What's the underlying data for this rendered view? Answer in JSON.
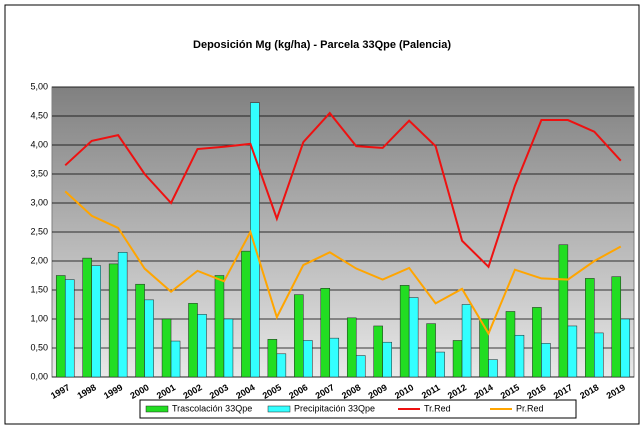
{
  "chart_data": {
    "type": "bar",
    "title": "Deposición Mg (kg/ha) - Parcela 33Qpe (Palencia)",
    "categories": [
      "1997",
      "1998",
      "1999",
      "2000",
      "2001",
      "2002",
      "2003",
      "2004",
      "2005",
      "2006",
      "2007",
      "2008",
      "2009",
      "2010",
      "2011",
      "2012",
      "2014",
      "2015",
      "2016",
      "2017",
      "2018",
      "2019"
    ],
    "series": [
      {
        "name": "Trascolación  33Qpe",
        "type": "bar",
        "color": "#22dd22",
        "values": [
          1.75,
          2.05,
          1.95,
          1.6,
          1.0,
          1.27,
          1.75,
          2.17,
          0.65,
          1.42,
          1.53,
          1.02,
          0.88,
          1.58,
          0.92,
          0.63,
          1.0,
          1.13,
          1.2,
          2.28,
          1.7,
          1.73
        ]
      },
      {
        "name": "Precipitación 33Qpe",
        "type": "bar",
        "color": "#33ffff",
        "values": [
          1.68,
          1.92,
          2.15,
          1.33,
          0.62,
          1.08,
          1.0,
          4.73,
          0.4,
          0.63,
          0.67,
          0.37,
          0.6,
          1.37,
          0.43,
          1.25,
          0.3,
          0.72,
          0.58,
          0.88,
          0.76,
          1.0
        ]
      },
      {
        "name": "Tr.Red",
        "type": "line",
        "color": "#ee1111",
        "values": [
          3.65,
          4.07,
          4.17,
          3.5,
          3.0,
          3.93,
          3.97,
          4.02,
          2.73,
          4.05,
          4.55,
          3.98,
          3.95,
          4.42,
          3.98,
          2.35,
          1.9,
          3.3,
          4.43,
          4.43,
          4.23,
          3.73
        ]
      },
      {
        "name": "Pr.Red",
        "type": "line",
        "color": "#ffa500",
        "values": [
          3.2,
          2.78,
          2.57,
          1.87,
          1.47,
          1.83,
          1.65,
          2.5,
          1.03,
          1.93,
          2.15,
          1.87,
          1.68,
          1.88,
          1.27,
          1.52,
          0.75,
          1.85,
          1.7,
          1.68,
          2.0,
          2.25
        ]
      }
    ],
    "ylim": [
      0,
      5
    ],
    "yticks": [
      {
        "value": 0,
        "label": "0,00"
      },
      {
        "value": 0.5,
        "label": "0,50"
      },
      {
        "value": 1,
        "label": "1,00"
      },
      {
        "value": 1.5,
        "label": "1,50"
      },
      {
        "value": 2,
        "label": "2,00"
      },
      {
        "value": 2.5,
        "label": "2,50"
      },
      {
        "value": 3,
        "label": "3,00"
      },
      {
        "value": 3.5,
        "label": "3,50"
      },
      {
        "value": 4,
        "label": "4,00"
      },
      {
        "value": 4.5,
        "label": "4,50"
      },
      {
        "value": 5,
        "label": "5,00"
      }
    ],
    "grid": true,
    "legend": "bottom"
  }
}
